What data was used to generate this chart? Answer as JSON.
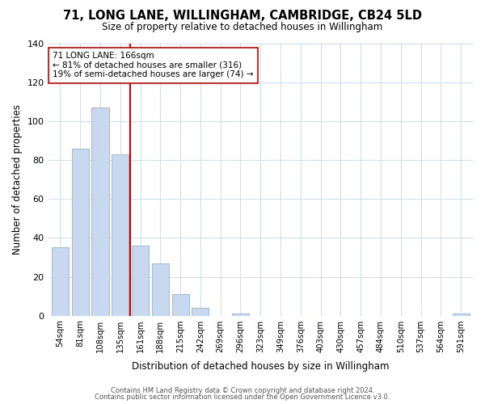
{
  "title": "71, LONG LANE, WILLINGHAM, CAMBRIDGE, CB24 5LD",
  "subtitle": "Size of property relative to detached houses in Willingham",
  "xlabel": "Distribution of detached houses by size in Willingham",
  "ylabel": "Number of detached properties",
  "bar_labels": [
    "54sqm",
    "81sqm",
    "108sqm",
    "135sqm",
    "161sqm",
    "188sqm",
    "215sqm",
    "242sqm",
    "269sqm",
    "296sqm",
    "323sqm",
    "349sqm",
    "376sqm",
    "403sqm",
    "430sqm",
    "457sqm",
    "484sqm",
    "510sqm",
    "537sqm",
    "564sqm",
    "591sqm"
  ],
  "bar_values": [
    35,
    86,
    107,
    83,
    36,
    27,
    11,
    4,
    0,
    1,
    0,
    0,
    0,
    0,
    0,
    0,
    0,
    0,
    0,
    0,
    1
  ],
  "bar_color": "#c8d8ee",
  "bar_edge_color": "#a0b8d8",
  "property_line_color": "#cc0000",
  "annotation_line1": "71 LONG LANE: 166sqm",
  "annotation_line2": "← 81% of detached houses are smaller (316)",
  "annotation_line3": "19% of semi-detached houses are larger (74) →",
  "annotation_box_color": "#ffffff",
  "annotation_box_edge": "#cc0000",
  "ylim": [
    0,
    140
  ],
  "yticks": [
    0,
    20,
    40,
    60,
    80,
    100,
    120,
    140
  ],
  "footer1": "Contains HM Land Registry data © Crown copyright and database right 2024.",
  "footer2": "Contains public sector information licensed under the Open Government Licence v3.0.",
  "bg_color": "#ffffff",
  "grid_color": "#d0dce8"
}
